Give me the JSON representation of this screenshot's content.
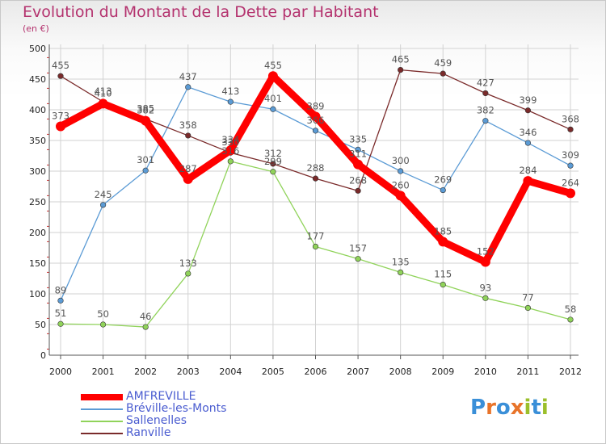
{
  "header": {
    "title": "Evolution du Montant de la Dette par Habitant",
    "subtitle": "(en €)"
  },
  "logo": {
    "text": "Proxiti",
    "colors": [
      "#3a8fd8",
      "#e8742a",
      "#3a8fd8",
      "#e8742a",
      "#9bbf2b",
      "#3a8fd8",
      "#9bbf2b"
    ]
  },
  "chart_data": {
    "type": "line",
    "title": "Evolution du Montant de la Dette par Habitant",
    "subtitle": "(en €)",
    "x": [
      "2000",
      "2001",
      "2002",
      "2003",
      "2004",
      "2005",
      "2006",
      "2007",
      "2008",
      "2009",
      "2010",
      "2011",
      "2012"
    ],
    "ylim": [
      0,
      500
    ],
    "yticks": [
      0,
      50,
      100,
      150,
      200,
      250,
      300,
      350,
      400,
      450,
      500
    ],
    "grid": true,
    "legend_position": "bottom-left",
    "series": [
      {
        "name": "AMFREVILLE",
        "color": "#ff0000",
        "values": [
          373,
          410,
          382,
          287,
          334,
          455,
          389,
          311,
          260,
          185,
          152,
          284,
          264
        ],
        "labels": [
          "373",
          "410",
          "382",
          "287",
          "334",
          "455",
          "389",
          "311",
          "260",
          "185",
          "152",
          "284",
          "264"
        ]
      },
      {
        "name": "Bréville-les-Monts",
        "color": "#5b9bd5",
        "values": [
          89,
          245,
          301,
          437,
          413,
          401,
          366,
          335,
          300,
          269,
          382,
          346,
          309
        ],
        "labels": [
          "89",
          "245",
          "301",
          "437",
          "413",
          "401",
          "366",
          "335",
          "300",
          "269",
          "382",
          "346",
          "309"
        ]
      },
      {
        "name": "Sallenelles",
        "color": "#90d35a",
        "values": [
          51,
          50,
          46,
          133,
          316,
          299,
          177,
          157,
          135,
          115,
          93,
          77,
          58
        ],
        "labels": [
          "51",
          "50",
          "46",
          "133",
          "316",
          "299",
          "177",
          "157",
          "135",
          "115",
          "93",
          "77",
          "58"
        ]
      },
      {
        "name": "Ranville",
        "color": "#7a2a2a",
        "values": [
          455,
          413,
          385,
          358,
          330,
          312,
          288,
          268,
          465,
          459,
          427,
          399,
          368
        ],
        "labels": [
          "455",
          "413",
          "385",
          "358",
          "330",
          "312",
          "288",
          "268",
          "465",
          "459",
          "427",
          "399",
          "368"
        ]
      }
    ]
  }
}
